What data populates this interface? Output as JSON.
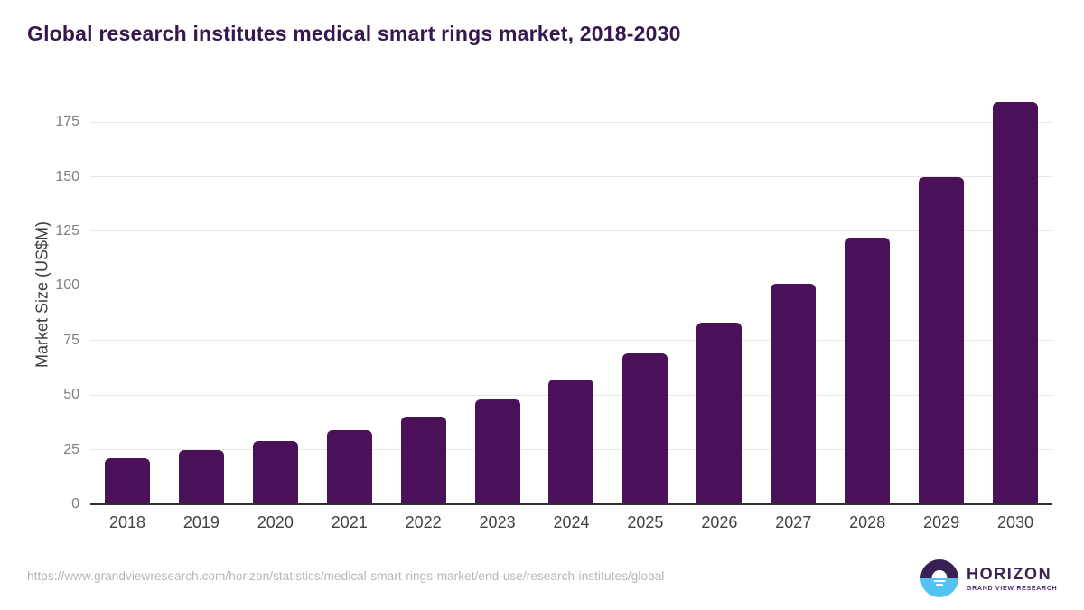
{
  "page": {
    "title": "Global research institutes medical smart rings market, 2018-2030"
  },
  "chart_data": {
    "type": "bar",
    "title": "Global research institutes medical smart rings market, 2018-2030",
    "categories": [
      "2018",
      "2019",
      "2020",
      "2021",
      "2022",
      "2023",
      "2024",
      "2025",
      "2026",
      "2027",
      "2028",
      "2029",
      "2030"
    ],
    "values": [
      21,
      25,
      29,
      34,
      40,
      48,
      57,
      69,
      83,
      101,
      122,
      150,
      184
    ],
    "xlabel": "",
    "ylabel": "Market Size (US$M)",
    "ylim": [
      0,
      192
    ],
    "yticks": [
      0,
      25,
      50,
      75,
      100,
      125,
      150,
      175
    ],
    "grid": "horizontal",
    "legend": "none",
    "bar_color": "#4a1158"
  },
  "footer": {
    "source_url": "https://www.grandviewresearch.com/horizon/statistics/medical-smart-rings-market/end-use/research-institutes/global",
    "logo_title": "HORIZON",
    "logo_subtitle": "GRAND VIEW RESEARCH"
  },
  "colors": {
    "bar": "#4a1158",
    "title_text": "#35184f",
    "axis_title_text": "#3d3d3d",
    "ytick_text": "#7f7f7f",
    "xtick_text": "#424242",
    "gridline": "#e7e7e7",
    "baseline": "#2d2d2d",
    "source_text": "#b5b5b5",
    "logo_purple": "#372153",
    "logo_blue": "#55c3f2"
  }
}
